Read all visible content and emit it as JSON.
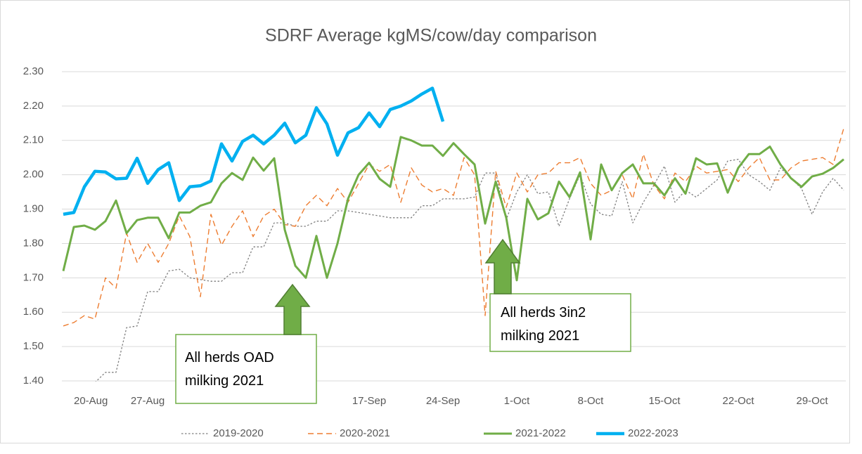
{
  "chart_data": {
    "type": "line",
    "title": "SDRF Average kgMS/cow/day comparison",
    "categories": [
      null,
      "20-Aug",
      null,
      null,
      null,
      null,
      null,
      null,
      "27-Aug",
      null,
      null,
      null,
      null,
      null,
      null,
      null,
      null,
      null,
      null,
      null,
      null,
      null,
      null,
      null,
      null,
      null,
      null,
      null,
      null,
      "17-Sep",
      null,
      null,
      null,
      null,
      null,
      null,
      "24-Sep",
      null,
      null,
      null,
      null,
      null,
      null,
      "1-Oct",
      null,
      null,
      null,
      null,
      null,
      null,
      "8-Oct",
      null,
      null,
      null,
      null,
      null,
      null,
      "15-Oct",
      null,
      null,
      null,
      null,
      null,
      null,
      "22-Oct",
      null,
      null,
      null,
      null,
      null,
      null,
      "29-Oct",
      null,
      null,
      null
    ],
    "ylim": [
      1.4,
      2.3
    ],
    "yticks": [
      {
        "value": 1.4,
        "label": "1.40"
      },
      {
        "value": 1.5,
        "label": "1.50"
      },
      {
        "value": 1.6,
        "label": "1.60"
      },
      {
        "value": 1.7,
        "label": "1.70"
      },
      {
        "value": 1.8,
        "label": "1.80"
      },
      {
        "value": 1.9,
        "label": "1.90"
      },
      {
        "value": 2.0,
        "label": "2.00"
      },
      {
        "value": 2.1,
        "label": "2.10"
      },
      {
        "value": 2.2,
        "label": "2.20"
      },
      {
        "value": 2.3,
        "label": "2.30"
      }
    ],
    "grid": true,
    "legend": "bottom",
    "series": [
      {
        "name": "2019-2020",
        "color": "#7f7f7f",
        "style": "dotted",
        "values": [
          null,
          null,
          null,
          1.395,
          1.425,
          1.425,
          1.555,
          1.56,
          1.66,
          1.66,
          1.72,
          1.725,
          1.7,
          1.695,
          1.69,
          1.69,
          1.715,
          1.715,
          1.79,
          1.79,
          1.86,
          1.86,
          1.85,
          1.85,
          1.865,
          1.865,
          1.895,
          1.895,
          1.89,
          1.885,
          1.88,
          1.875,
          1.875,
          1.875,
          1.91,
          1.91,
          1.93,
          1.93,
          1.93,
          1.935,
          2.005,
          2.005,
          1.87,
          1.95,
          2.0,
          1.945,
          1.95,
          1.85,
          1.93,
          2.0,
          1.915,
          1.885,
          1.88,
          1.98,
          1.86,
          1.92,
          1.97,
          2.025,
          1.92,
          1.955,
          1.935,
          1.96,
          1.985,
          2.04,
          2.045,
          2.0,
          1.98,
          1.955,
          2.02,
          1.99,
          1.96,
          1.885,
          1.95,
          1.99,
          1.955
        ]
      },
      {
        "name": "2020-2021",
        "color": "#ed7d31",
        "style": "dashed",
        "values": [
          1.56,
          1.57,
          1.59,
          1.58,
          1.7,
          1.67,
          1.83,
          1.745,
          1.8,
          1.745,
          1.8,
          1.88,
          1.82,
          1.645,
          1.885,
          1.795,
          1.85,
          1.895,
          1.82,
          1.88,
          1.9,
          1.855,
          1.85,
          1.91,
          1.94,
          1.91,
          1.96,
          1.92,
          1.975,
          2.03,
          2.01,
          2.03,
          1.92,
          2.02,
          1.97,
          1.95,
          1.96,
          1.94,
          2.05,
          2.0,
          1.59,
          2.01,
          1.905,
          2.005,
          1.95,
          2.0,
          2.005,
          2.035,
          2.035,
          2.05,
          1.975,
          1.94,
          1.955,
          2.0,
          1.93,
          2.06,
          1.97,
          1.93,
          2.005,
          1.98,
          2.025,
          2.005,
          2.01,
          2.015,
          1.98,
          2.02,
          2.05,
          1.985,
          1.985,
          2.02,
          2.04,
          2.045,
          2.05,
          2.03,
          2.135
        ]
      },
      {
        "name": "2021-2022",
        "color": "#70ad47",
        "style": "solid",
        "values": [
          1.72,
          1.848,
          1.852,
          1.84,
          1.865,
          1.925,
          1.83,
          1.868,
          1.875,
          1.875,
          1.815,
          1.89,
          1.89,
          1.91,
          1.92,
          1.975,
          2.005,
          1.985,
          2.05,
          2.012,
          2.048,
          1.84,
          1.735,
          1.7,
          1.822,
          1.7,
          1.8,
          1.93,
          2.0,
          2.035,
          1.988,
          1.965,
          2.11,
          2.1,
          2.085,
          2.085,
          2.055,
          2.092,
          2.06,
          2.03,
          1.858,
          1.98,
          1.875,
          1.693,
          1.93,
          1.87,
          1.888,
          1.98,
          1.935,
          2.007,
          1.812,
          2.03,
          1.955,
          2.005,
          2.03,
          1.975,
          1.975,
          1.94,
          1.99,
          1.945,
          2.048,
          2.03,
          2.033,
          1.948,
          2.02,
          2.06,
          2.06,
          2.082,
          2.03,
          1.99,
          1.965,
          1.995,
          2.003,
          2.02,
          2.045
        ]
      },
      {
        "name": "2022-2023",
        "color": "#00b0f0",
        "style": "thick",
        "values": [
          1.885,
          1.89,
          1.965,
          2.01,
          2.008,
          1.988,
          1.99,
          2.048,
          1.975,
          2.015,
          2.035,
          1.925,
          1.965,
          1.968,
          1.982,
          2.09,
          2.04,
          2.097,
          2.115,
          2.09,
          2.115,
          2.15,
          2.093,
          2.115,
          2.195,
          2.148,
          2.057,
          2.122,
          2.137,
          2.18,
          2.14,
          2.19,
          2.2,
          2.215,
          2.235,
          2.252,
          2.155,
          null,
          null,
          null,
          null,
          null,
          null,
          null,
          null,
          null,
          null,
          null,
          null,
          null,
          null,
          null,
          null,
          null,
          null,
          null,
          null,
          null,
          null,
          null,
          null,
          null,
          null,
          null,
          null,
          null,
          null,
          null,
          null,
          null,
          null,
          null,
          null,
          null,
          null
        ]
      }
    ],
    "annotations": [
      {
        "lines": [
          "All herds OAD",
          "milking 2021"
        ]
      },
      {
        "lines": [
          "All herds 3in2",
          "milking 2021"
        ]
      }
    ]
  }
}
